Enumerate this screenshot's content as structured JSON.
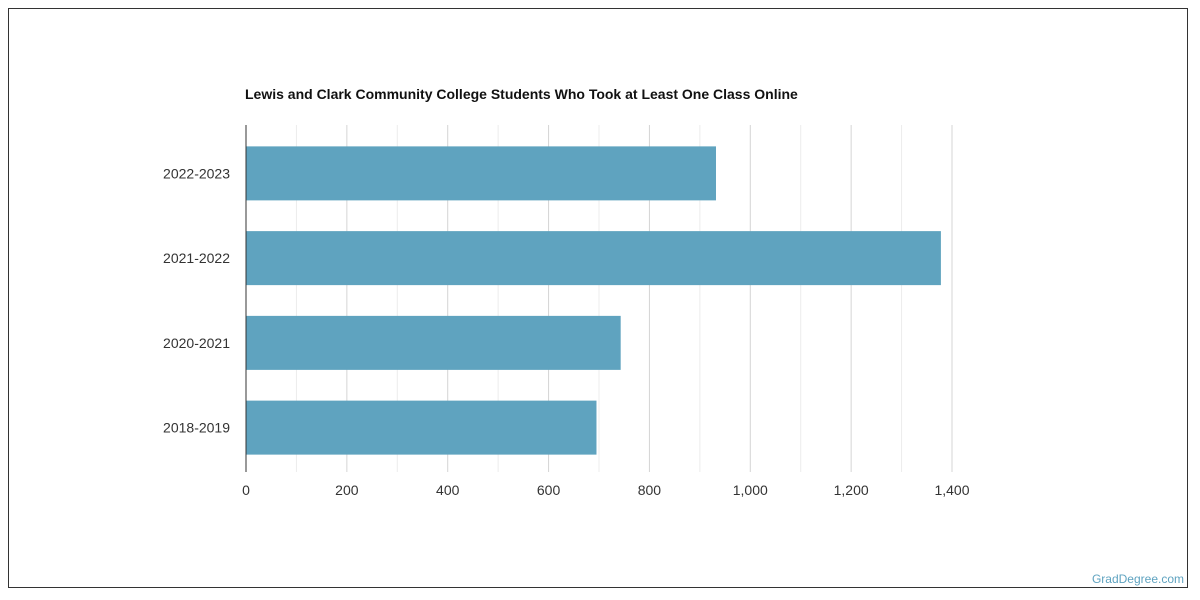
{
  "chart_data": {
    "type": "bar",
    "orientation": "horizontal",
    "title": "Lewis and Clark Community College Students Who Took at Least One Class Online",
    "categories": [
      "2022-2023",
      "2021-2022",
      "2020-2021",
      "2018-2019"
    ],
    "values": [
      932,
      1378,
      743,
      695
    ],
    "xlim": [
      0,
      1400
    ],
    "xticks": [
      0,
      200,
      400,
      600,
      800,
      1000,
      1200,
      1400
    ],
    "xtick_labels": [
      "0",
      "200",
      "400",
      "600",
      "800",
      "1,000",
      "1,200",
      "1,400"
    ],
    "xlabel": "",
    "ylabel": "",
    "grid": true,
    "legend": "none",
    "bar_color": "#5fa3bf",
    "grid_color": "#d9d9d9"
  },
  "credit": "GradDegree.com"
}
